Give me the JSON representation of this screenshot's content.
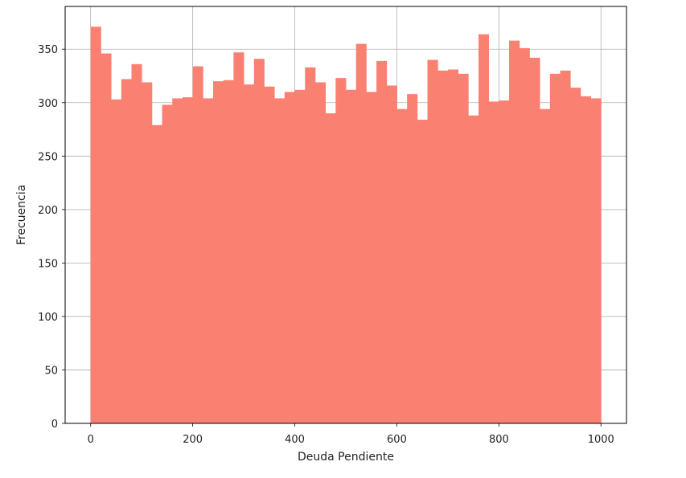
{
  "chart_data": {
    "type": "bar",
    "title": "",
    "xlabel": "Deuda Pendiente",
    "ylabel": "Frecuencia",
    "xlim": [
      -50,
      1050
    ],
    "ylim": [
      0,
      390
    ],
    "xticks": [
      0,
      200,
      400,
      600,
      800,
      1000
    ],
    "yticks": [
      0,
      50,
      100,
      150,
      200,
      250,
      300,
      350
    ],
    "grid": true,
    "bar_color": "#fa8072",
    "bins": {
      "start": 0,
      "end": 1000,
      "count": 50
    },
    "values": [
      371,
      346,
      303,
      322,
      336,
      319,
      279,
      298,
      304,
      305,
      334,
      304,
      320,
      321,
      347,
      317,
      341,
      315,
      304,
      310,
      312,
      333,
      319,
      290,
      323,
      312,
      355,
      310,
      339,
      316,
      294,
      308,
      284,
      340,
      330,
      331,
      327,
      288,
      364,
      301,
      302,
      358,
      351,
      342,
      294,
      327,
      330,
      314,
      306,
      304
    ]
  }
}
